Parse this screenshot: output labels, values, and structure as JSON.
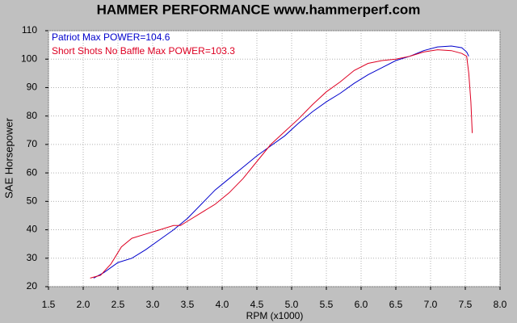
{
  "chart_data": {
    "type": "line",
    "title": "HAMMER PERFORMANCE www.hammerperf.com",
    "xlabel": "RPM (x1000)",
    "ylabel": "SAE Horsepower",
    "xlim": [
      1.5,
      8.0
    ],
    "ylim": [
      20,
      110
    ],
    "xticks": [
      {
        "value": 1.5,
        "label": "1.5"
      },
      {
        "value": 2,
        "label": "2.0"
      },
      {
        "value": 2.5,
        "label": "2.5"
      },
      {
        "value": 3,
        "label": "3.0"
      },
      {
        "value": 3.5,
        "label": "3.5"
      },
      {
        "value": 4,
        "label": "4.0"
      },
      {
        "value": 4.5,
        "label": "4.5"
      },
      {
        "value": 5,
        "label": "5.0"
      },
      {
        "value": 5.5,
        "label": "5.5"
      },
      {
        "value": 6,
        "label": "6.0"
      },
      {
        "value": 6.5,
        "label": "6.5"
      },
      {
        "value": 7,
        "label": "7.0"
      },
      {
        "value": 7.5,
        "label": "7.5"
      },
      {
        "value": 8,
        "label": "8.0"
      }
    ],
    "yticks": [
      20,
      30,
      40,
      50,
      60,
      70,
      80,
      90,
      100,
      110
    ],
    "grid": true,
    "series": [
      {
        "name": "Patriot Max POWER=104.6",
        "color": "#0000cc",
        "x": [
          2.15,
          2.3,
          2.5,
          2.7,
          2.9,
          3.1,
          3.3,
          3.5,
          3.7,
          3.9,
          4.1,
          4.3,
          4.5,
          4.7,
          4.9,
          5.1,
          5.3,
          5.5,
          5.7,
          5.9,
          6.1,
          6.3,
          6.5,
          6.7,
          6.9,
          7.1,
          7.3,
          7.45,
          7.52,
          7.55
        ],
        "values": [
          23,
          25,
          28.5,
          30,
          33,
          36.5,
          40,
          44,
          49,
          54,
          58,
          62,
          66,
          69.5,
          73,
          77.5,
          81.5,
          85,
          88,
          91.5,
          94.5,
          97,
          99.5,
          101,
          103,
          104.3,
          104.6,
          104,
          102.5,
          101
        ]
      },
      {
        "name": "Short Shots No Baffle Max POWER=103.3",
        "color": "#dd0022",
        "x": [
          2.1,
          2.25,
          2.4,
          2.55,
          2.7,
          2.9,
          3.1,
          3.3,
          3.4,
          3.5,
          3.7,
          3.9,
          4.1,
          4.3,
          4.5,
          4.7,
          4.9,
          5.1,
          5.3,
          5.5,
          5.7,
          5.9,
          6.1,
          6.3,
          6.5,
          6.7,
          6.9,
          7.1,
          7.3,
          7.45,
          7.52,
          7.55,
          7.58,
          7.6
        ],
        "values": [
          23,
          24,
          28,
          34,
          37,
          38.5,
          40,
          41.5,
          41.5,
          43,
          46,
          49,
          53,
          58,
          64,
          70,
          74.5,
          79,
          84,
          88.5,
          92,
          96,
          98.5,
          99.5,
          100,
          101,
          102.5,
          103.3,
          103,
          102,
          101,
          95,
          85,
          74
        ]
      }
    ]
  }
}
